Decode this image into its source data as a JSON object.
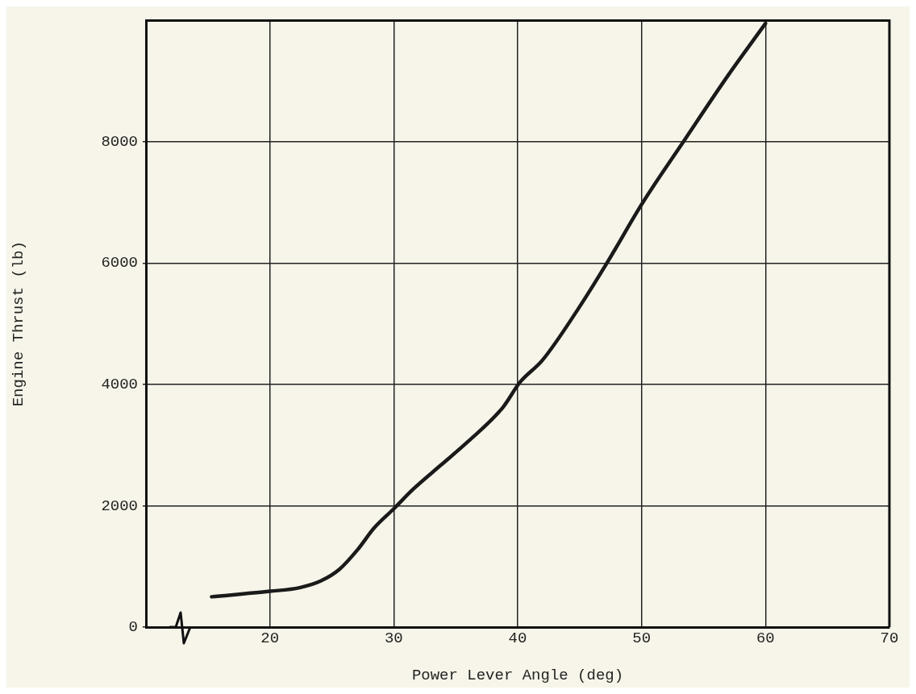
{
  "chart_data": {
    "type": "line",
    "xlabel": "Power Lever Angle (deg)",
    "ylabel": "Engine Thrust (lb)",
    "xlim": [
      10,
      70
    ],
    "xticks": [
      20,
      30,
      40,
      50,
      60,
      70
    ],
    "ylim": [
      0,
      10000
    ],
    "yticks": [
      0,
      2000,
      4000,
      6000,
      8000
    ],
    "grid": true,
    "legend": false,
    "marker": "none",
    "line_style": "solid",
    "series": [
      {
        "color": "#1a1a1a",
        "x": [
          15.3,
          20,
          22.4,
          24.1,
          25.6,
          27.1,
          28.4,
          30,
          31.6,
          33.8,
          36,
          38.8,
          40.2,
          42,
          44.9,
          47.2,
          50.1,
          53.5,
          57,
          60
        ],
        "values": [
          500,
          590,
          650,
          760,
          950,
          1280,
          1630,
          1950,
          2280,
          2670,
          3060,
          3620,
          4040,
          4400,
          5250,
          6000,
          7000,
          8040,
          9100,
          9950
        ]
      }
    ]
  }
}
